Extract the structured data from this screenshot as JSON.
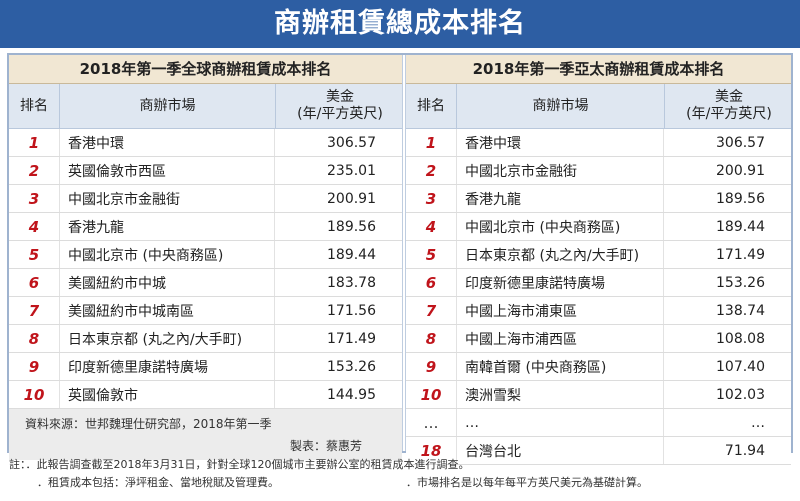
{
  "title": "商辦租賃總成本排名",
  "global": {
    "title": "2018年第一季全球商辦租賃成本排名",
    "headers": {
      "rank": "排名",
      "market": "商辦市場",
      "usd_line1": "美金",
      "usd_line2": "(年/平方英尺)"
    },
    "rows": [
      {
        "rank": "1",
        "market": "香港中環",
        "usd": "306.57"
      },
      {
        "rank": "2",
        "market": "英國倫敦市西區",
        "usd": "235.01"
      },
      {
        "rank": "3",
        "market": "中國北京市金融街",
        "usd": "200.91"
      },
      {
        "rank": "4",
        "market": "香港九龍",
        "usd": "189.56"
      },
      {
        "rank": "5",
        "market": "中國北京市 (中央商務區)",
        "usd": "189.44"
      },
      {
        "rank": "6",
        "market": "美國紐約市中城",
        "usd": "183.78"
      },
      {
        "rank": "7",
        "market": "美國紐約市中城南區",
        "usd": "171.56"
      },
      {
        "rank": "8",
        "market": "日本東京都 (丸之內/大手町)",
        "usd": "171.49"
      },
      {
        "rank": "9",
        "market": "印度新德里康諾特廣場",
        "usd": "153.26"
      },
      {
        "rank": "10",
        "market": "英國倫敦市",
        "usd": "144.95"
      }
    ],
    "source": "資料來源：世邦魏理仕研究部，2018年第一季",
    "producer": "製表：蔡惠芳"
  },
  "apac": {
    "title": "2018年第一季亞太商辦租賃成本排名",
    "headers": {
      "rank": "排名",
      "market": "商辦市場",
      "usd_line1": "美金",
      "usd_line2": "(年/平方英尺)"
    },
    "rows": [
      {
        "rank": "1",
        "market": "香港中環",
        "usd": "306.57"
      },
      {
        "rank": "2",
        "market": "中國北京市金融街",
        "usd": "200.91"
      },
      {
        "rank": "3",
        "market": "香港九龍",
        "usd": "189.56"
      },
      {
        "rank": "4",
        "market": "中國北京市 (中央商務區)",
        "usd": "189.44"
      },
      {
        "rank": "5",
        "market": "日本東京都 (丸之內/大手町)",
        "usd": "171.49"
      },
      {
        "rank": "6",
        "market": "印度新德里康諾特廣場",
        "usd": "153.26"
      },
      {
        "rank": "7",
        "market": "中國上海市浦東區",
        "usd": "138.74"
      },
      {
        "rank": "8",
        "market": "中國上海市浦西區",
        "usd": "108.08"
      },
      {
        "rank": "9",
        "market": "南韓首爾 (中央商務區)",
        "usd": "107.40"
      },
      {
        "rank": "10",
        "market": "澳洲雪梨",
        "usd": "102.03"
      },
      {
        "rank": "…",
        "market": "…",
        "usd": "…"
      },
      {
        "rank": "18",
        "market": "台灣台北",
        "usd": "71.94"
      }
    ]
  },
  "notes": {
    "line1": "註：．此報告調查截至2018年3月31日，針對全球120個城市主要辦公室的租賃成本進行調查。",
    "line2": "．租賃成本包括：淨坪租金、當地稅賦及管理費。",
    "line3": "．市場排名是以每年每平方英尺美元為基礎計算。"
  }
}
